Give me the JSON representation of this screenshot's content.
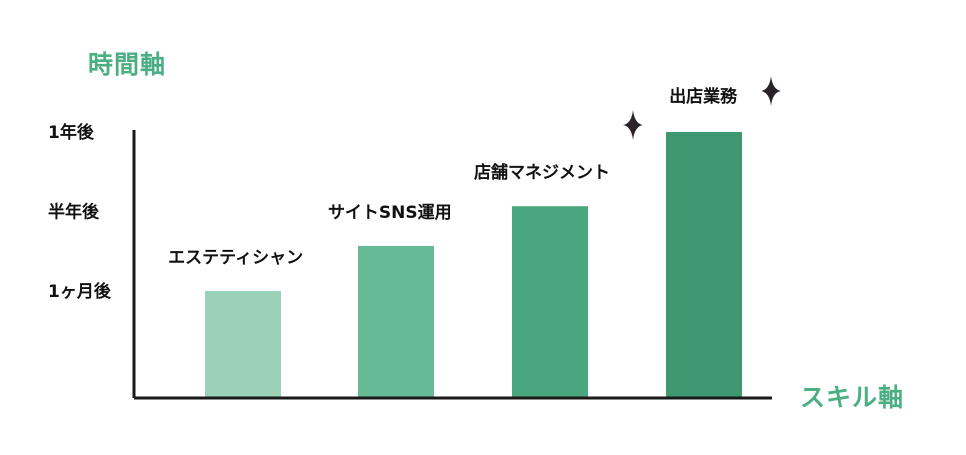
{
  "chart_data": {
    "type": "bar",
    "ylabel": "時間軸",
    "xlabel": "スキル軸",
    "categories": [
      "エステティシャン",
      "サイトSNS運用",
      "店舗マネジメント",
      "出店業務"
    ],
    "values": [
      0.4,
      0.57,
      0.72,
      1.0
    ],
    "ytick_labels": [
      {
        "value": 0.4,
        "label": "1ヶ月後"
      },
      {
        "value": 0.7,
        "label": "半年後"
      },
      {
        "value": 1.0,
        "label": "1年後"
      }
    ],
    "bar_colors": [
      "#9bd1b6",
      "#66bb95",
      "#4aa67c",
      "#3f9870"
    ],
    "axis_color": "#1a1a1a",
    "title_color": "#4caf82",
    "decoration_icon": "sparkle-icon",
    "grid": false,
    "legend": "none"
  }
}
